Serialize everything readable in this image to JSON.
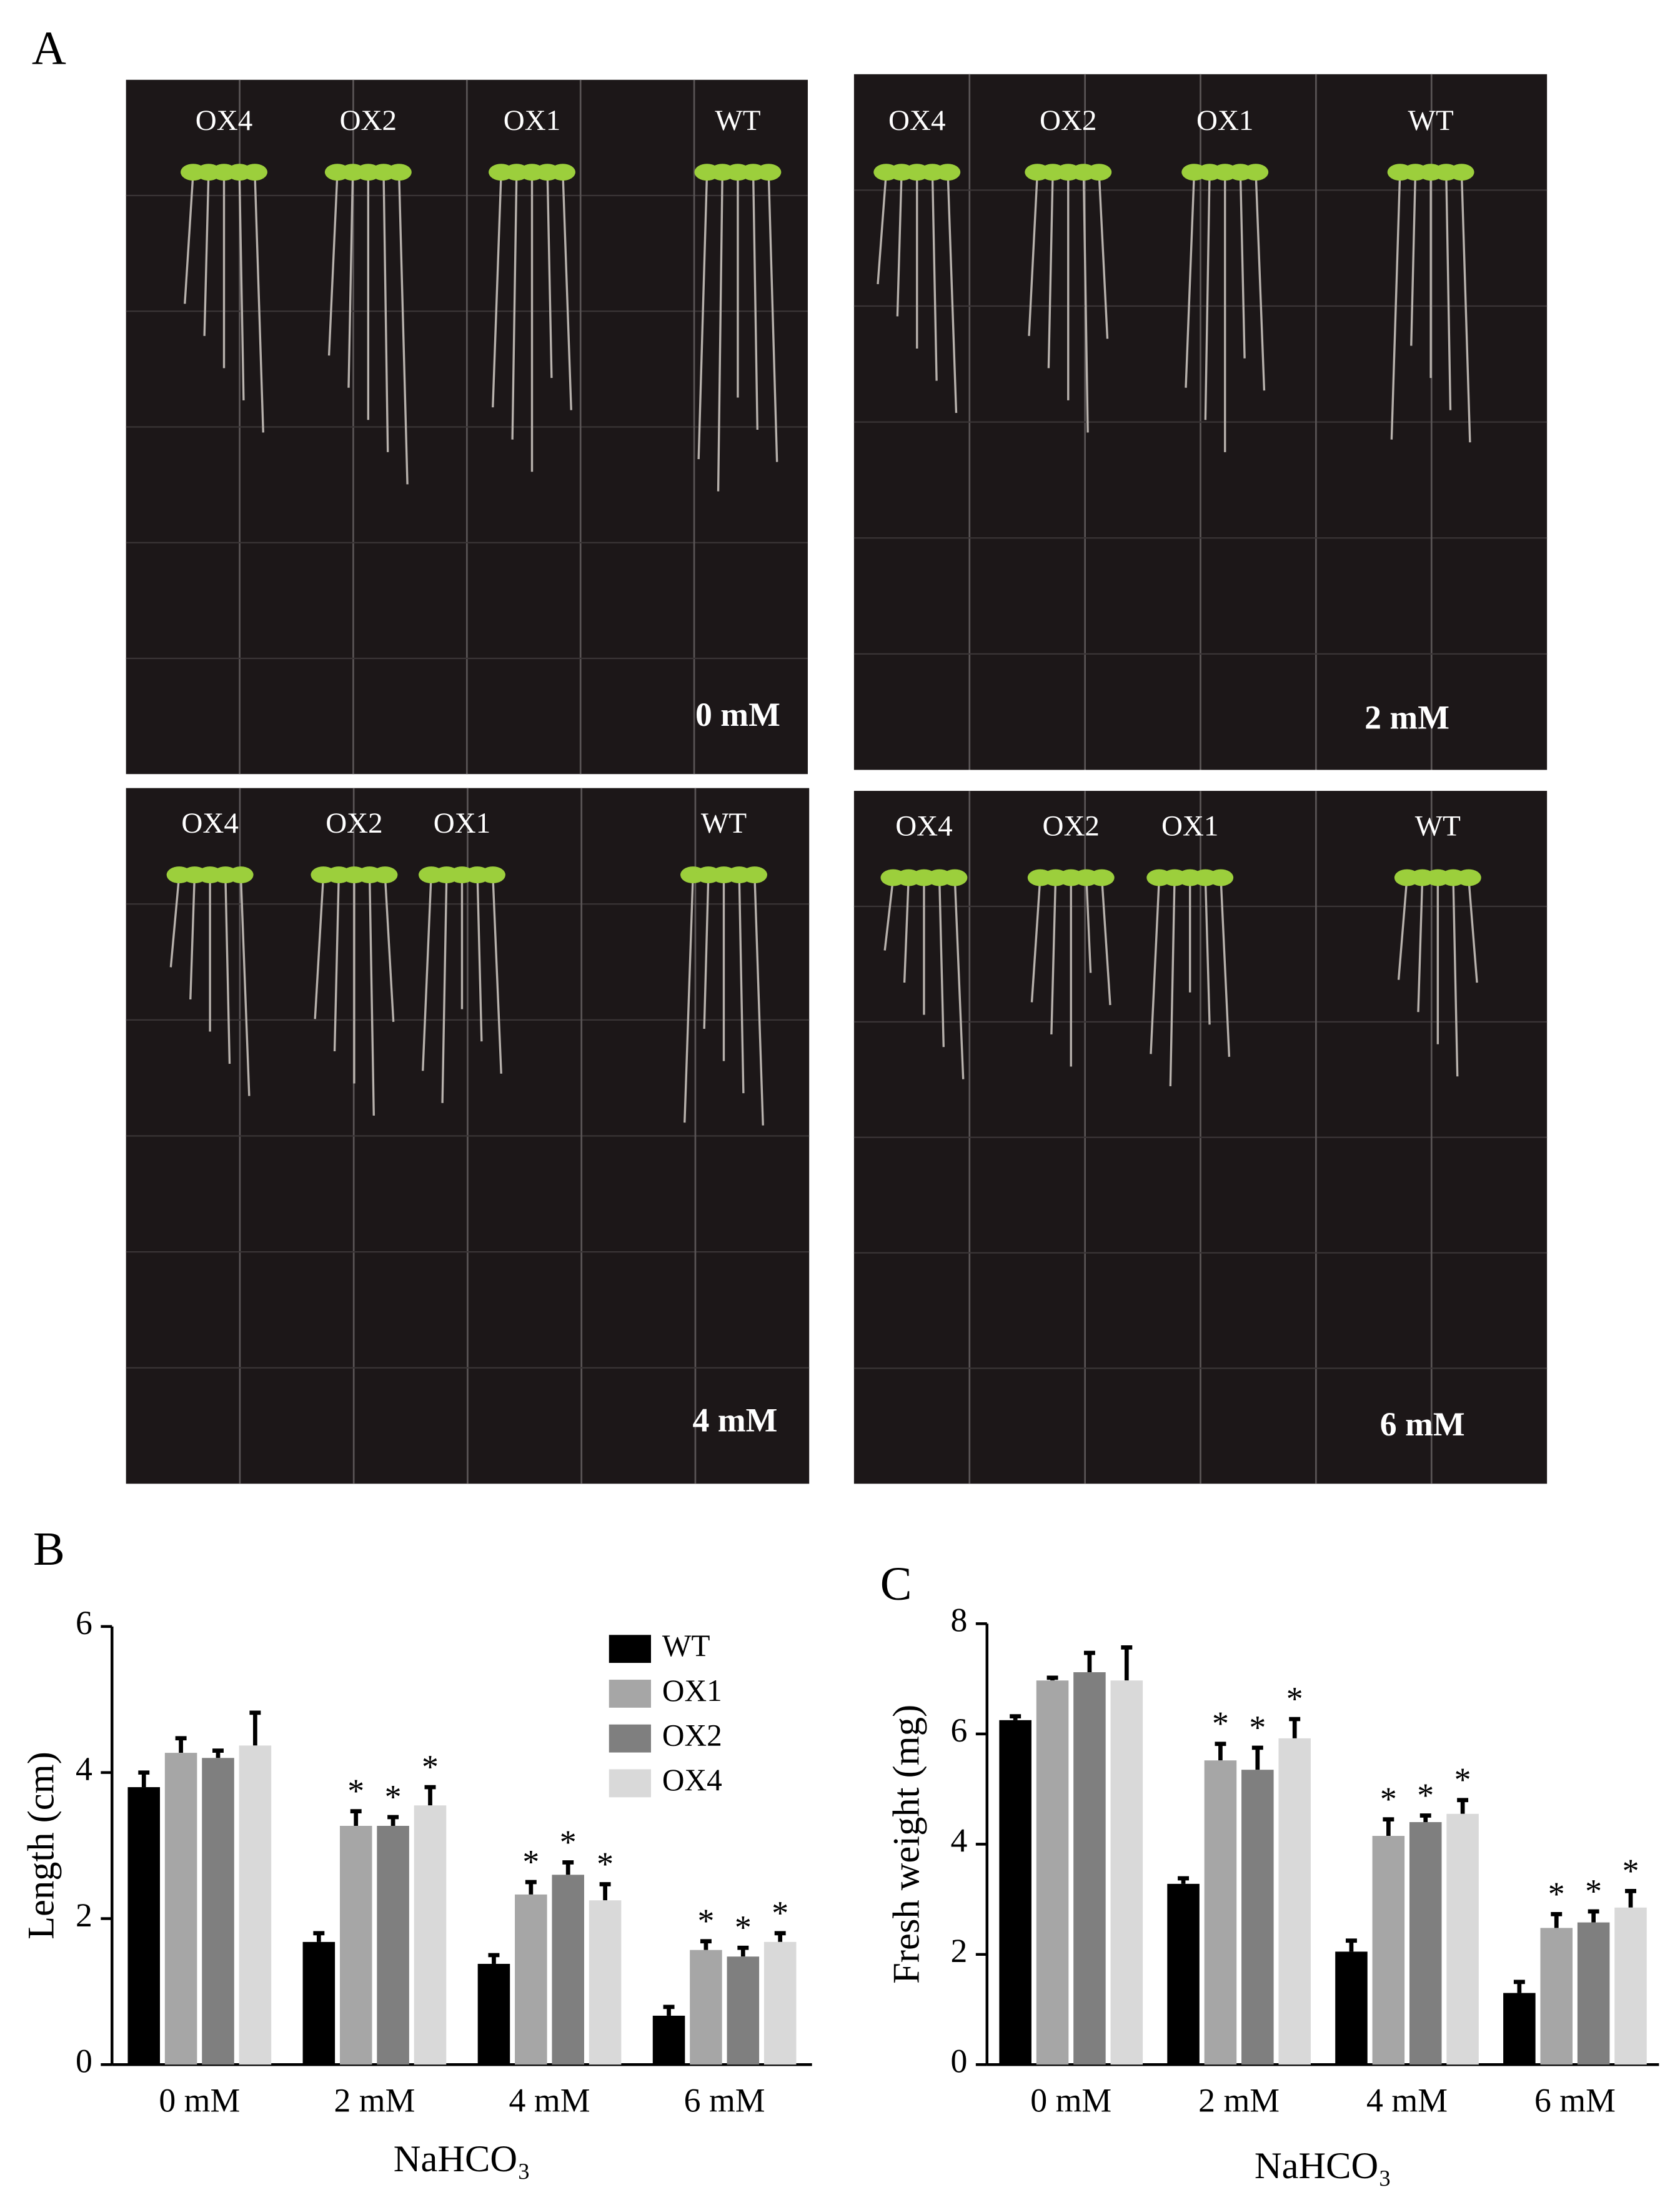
{
  "panel_labels": [
    "A",
    "B",
    "C"
  ],
  "photos": [
    {
      "labels": [
        "OX4",
        "OX2",
        "OX1",
        "WT"
      ],
      "concentration": "0 mM"
    },
    {
      "labels": [
        "OX4",
        "OX2",
        "OX1",
        "WT"
      ],
      "concentration": "2 mM"
    },
    {
      "labels": [
        "OX4",
        "OX2",
        "OX1",
        "WT"
      ],
      "concentration": "4 mM"
    },
    {
      "labels": [
        "OX4",
        "OX2",
        "OX1",
        "WT"
      ],
      "concentration": "6 mM"
    }
  ],
  "chart_data": [
    {
      "type": "bar",
      "x_label": "NaHCO₃",
      "y_label": "Length (cm)",
      "categories": [
        "0 mM",
        "2 mM",
        "4 mM",
        "6 mM"
      ],
      "ylim": [
        0,
        6
      ],
      "yticks": [
        0,
        2,
        4,
        6
      ],
      "legend": "upper right",
      "series": [
        {
          "name": "WT",
          "color": "#000000",
          "values": [
            3.8,
            1.68,
            1.38,
            0.67
          ],
          "errors": [
            0.2,
            0.12,
            0.12,
            0.12
          ],
          "annotations": [
            null,
            null,
            null,
            null
          ]
        },
        {
          "name": "OX1",
          "color": "#a6a6a6",
          "values": [
            4.27,
            3.27,
            2.33,
            1.57
          ],
          "errors": [
            0.2,
            0.2,
            0.17,
            0.12
          ],
          "annotations": [
            null,
            "*",
            "*",
            "*"
          ]
        },
        {
          "name": "OX2",
          "color": "#7f7f7f",
          "values": [
            4.2,
            3.27,
            2.6,
            1.48
          ],
          "errors": [
            0.1,
            0.12,
            0.17,
            0.12
          ],
          "annotations": [
            null,
            "*",
            "*",
            "*"
          ]
        },
        {
          "name": "OX4",
          "color": "#d9d9d9",
          "values": [
            4.37,
            3.55,
            2.25,
            1.68
          ],
          "errors": [
            0.45,
            0.25,
            0.22,
            0.12
          ],
          "annotations": [
            null,
            "*",
            "*",
            "*"
          ]
        }
      ]
    },
    {
      "type": "bar",
      "x_label": "NaHCO₃",
      "y_label": "Fresh weight (mg)",
      "categories": [
        "0 mM",
        "2 mM",
        "4 mM",
        "6 mM"
      ],
      "ylim": [
        0,
        8
      ],
      "yticks": [
        0,
        2,
        4,
        6,
        8
      ],
      "series": [
        {
          "color": "#000000",
          "values": [
            6.25,
            3.28,
            2.05,
            1.3
          ],
          "errors": [
            0.07,
            0.1,
            0.2,
            0.2
          ],
          "annotations": [
            null,
            null,
            null,
            null
          ]
        },
        {
          "color": "#a6a6a6",
          "values": [
            6.97,
            5.52,
            4.15,
            2.48
          ],
          "errors": [
            0.05,
            0.3,
            0.3,
            0.25
          ],
          "annotations": [
            null,
            "*",
            "*",
            "*"
          ]
        },
        {
          "color": "#7f7f7f",
          "values": [
            7.12,
            5.35,
            4.4,
            2.58
          ],
          "errors": [
            0.35,
            0.4,
            0.12,
            0.2
          ],
          "annotations": [
            null,
            "*",
            "*",
            "*"
          ]
        },
        {
          "color": "#d9d9d9",
          "values": [
            6.97,
            5.92,
            4.55,
            2.85
          ],
          "errors": [
            0.6,
            0.35,
            0.25,
            0.3
          ],
          "annotations": [
            null,
            "*",
            "*",
            "*"
          ]
        }
      ]
    }
  ]
}
